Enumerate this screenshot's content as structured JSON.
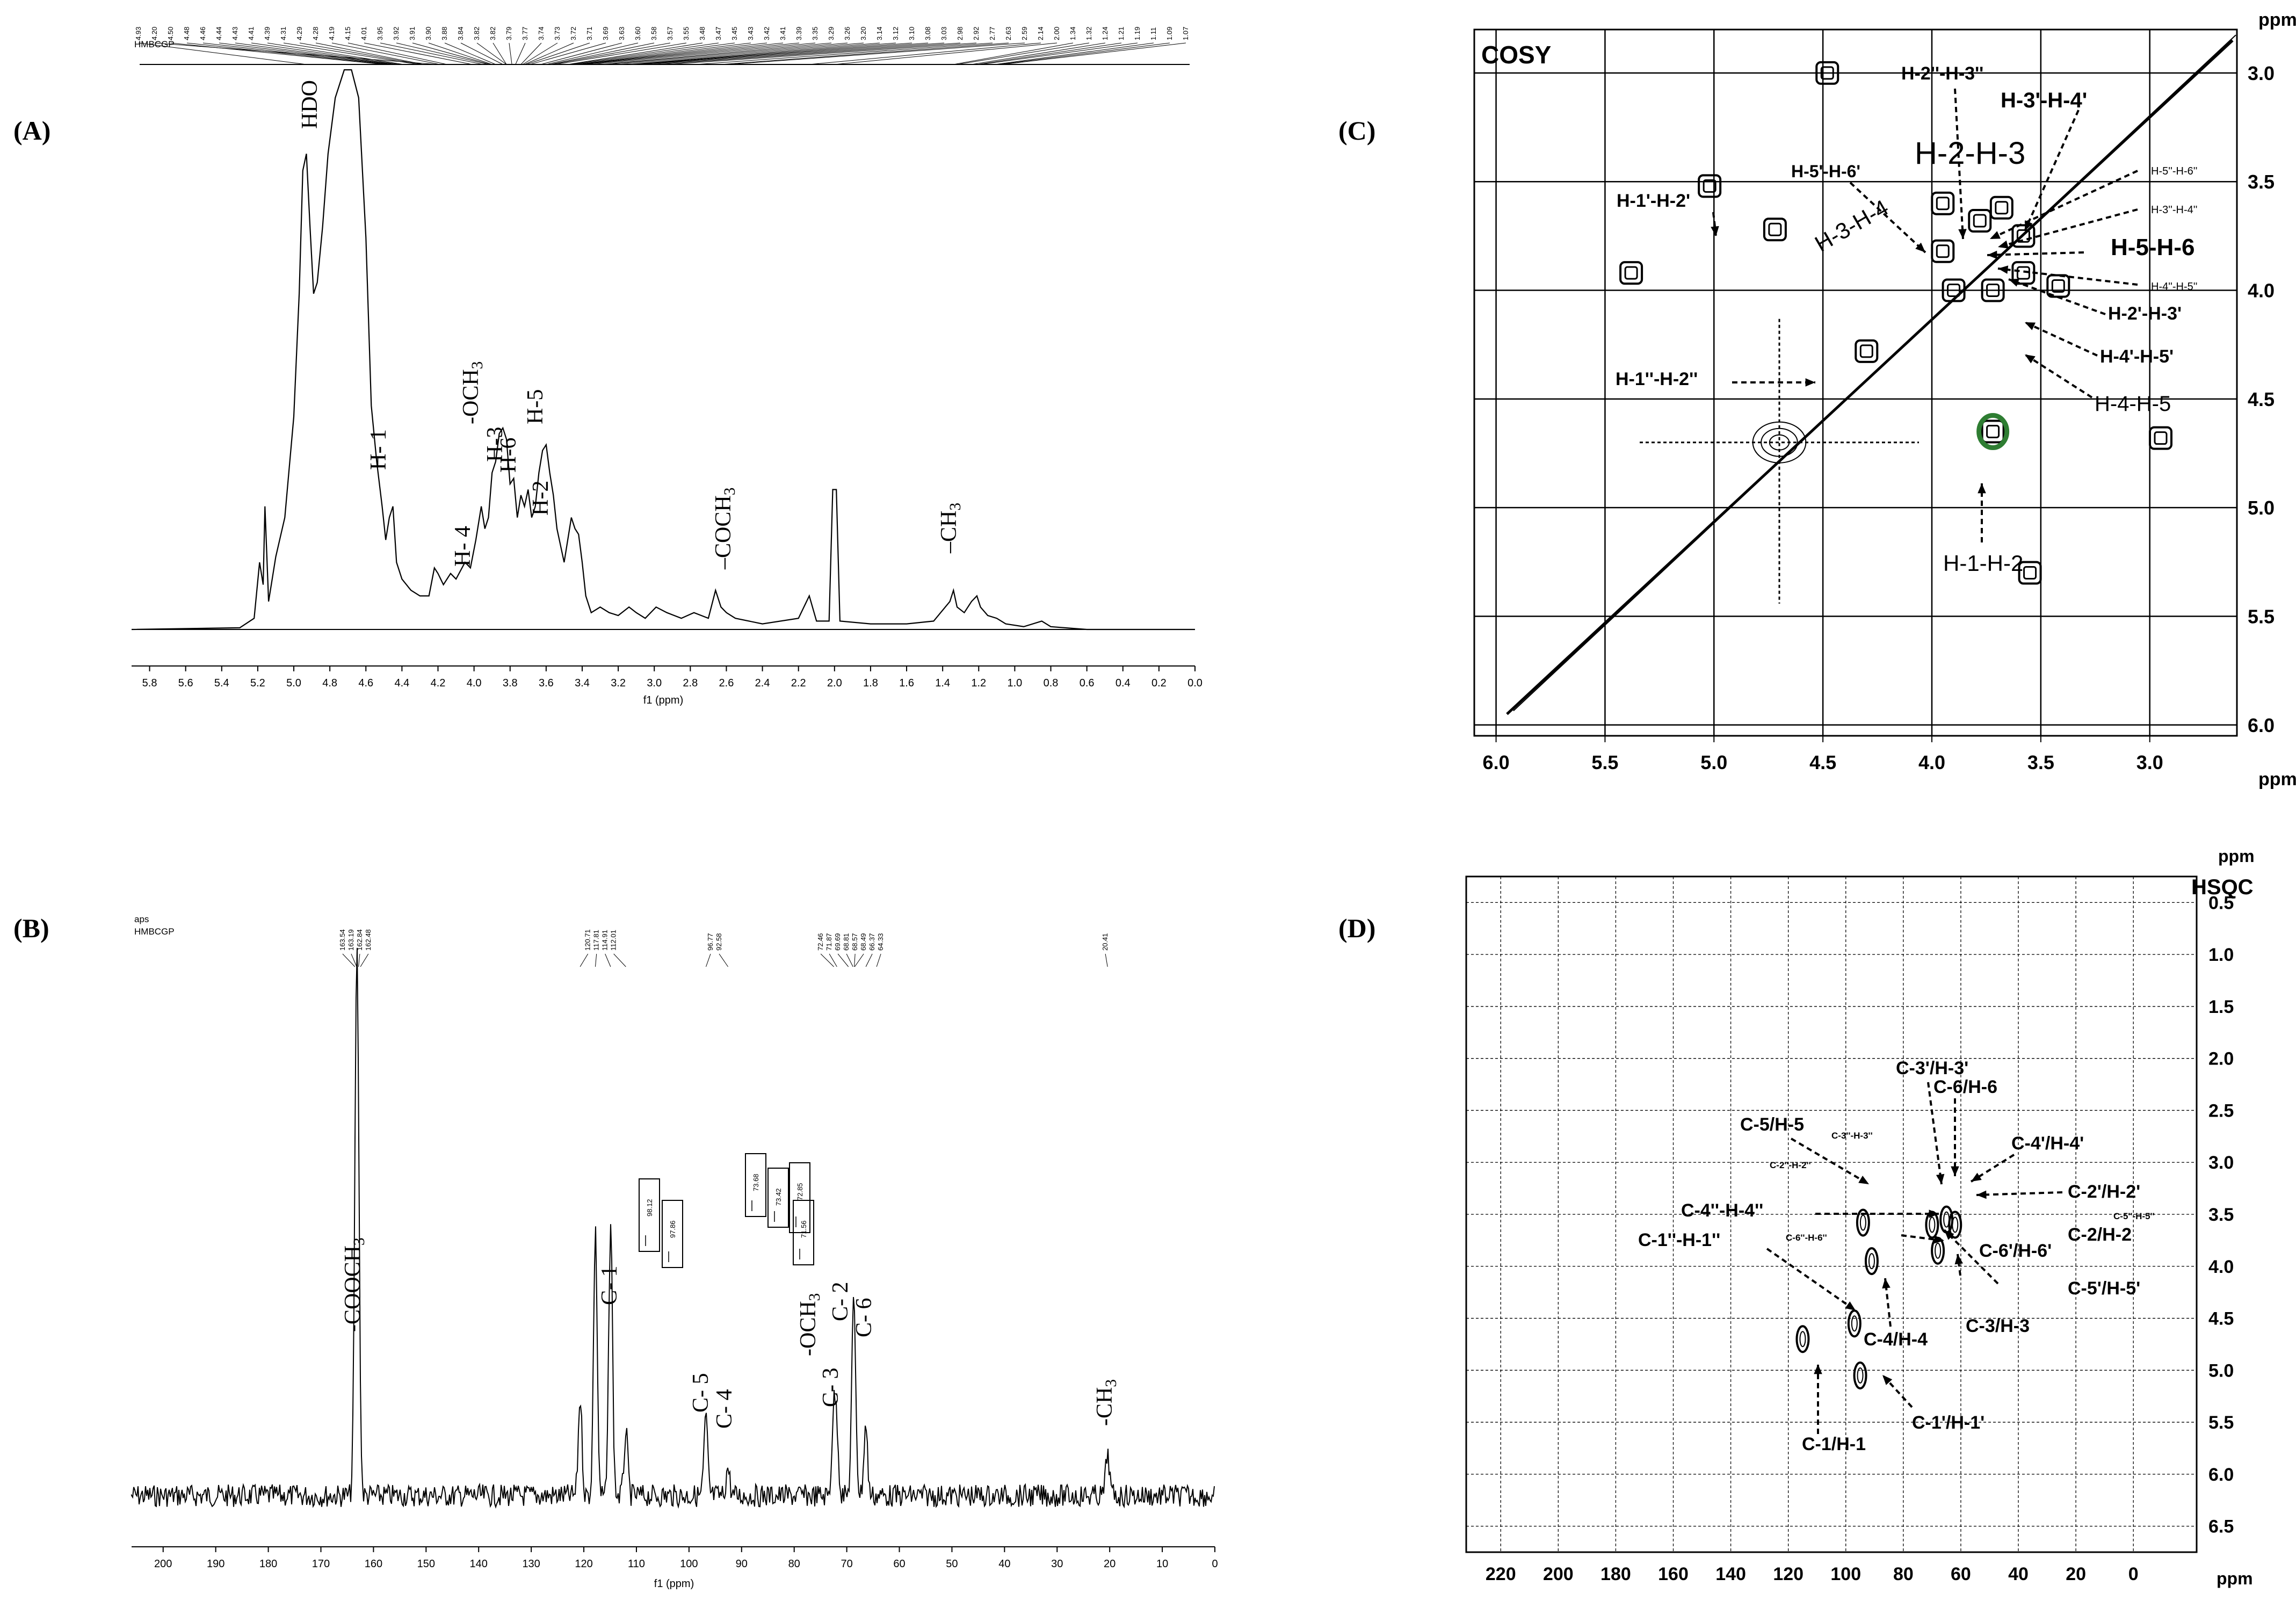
{
  "panels": [
    {
      "id": "A",
      "letter": "(A)",
      "chart_data": {
        "type": "line",
        "title": "",
        "experiment_label": "HMBCGP",
        "xlabel": "f1 (ppm)",
        "xlim": [
          5.9,
          0.0
        ],
        "xticks": [
          "5.8",
          "5.6",
          "5.4",
          "5.2",
          "5.0",
          "4.8",
          "4.6",
          "4.4",
          "4.2",
          "4.0",
          "3.8",
          "3.6",
          "3.4",
          "3.2",
          "3.0",
          "2.8",
          "2.6",
          "2.4",
          "2.2",
          "2.0",
          "1.8",
          "1.6",
          "1.4",
          "1.2",
          "1.0",
          "0.8",
          "0.6",
          "0.4",
          "0.2",
          "0.0"
        ],
        "peak_list": [
          "4.93",
          "4.20",
          "4.50",
          "4.48",
          "4.46",
          "4.44",
          "4.43",
          "4.41",
          "4.39",
          "4.31",
          "4.29",
          "4.28",
          "4.19",
          "4.15",
          "4.01",
          "3.95",
          "3.92",
          "3.91",
          "3.90",
          "3.88",
          "3.84",
          "3.82",
          "3.82",
          "3.79",
          "3.77",
          "3.74",
          "3.73",
          "3.72",
          "3.71",
          "3.69",
          "3.63",
          "3.60",
          "3.58",
          "3.57",
          "3.55",
          "3.48",
          "3.47",
          "3.45",
          "3.43",
          "3.42",
          "3.41",
          "3.39",
          "3.35",
          "3.29",
          "3.26",
          "3.20",
          "3.14",
          "3.12",
          "3.10",
          "3.08",
          "3.03",
          "2.98",
          "2.92",
          "2.77",
          "2.63",
          "2.59",
          "2.14",
          "2.00",
          "1.34",
          "1.32",
          "1.24",
          "1.21",
          "1.19",
          "1.11",
          "1.09",
          "1.07"
        ],
        "series": [
          {
            "points": [
              [
                5.9,
                0.0
              ],
              [
                5.3,
                0.003
              ],
              [
                5.22,
                0.02
              ],
              [
                5.19,
                0.12
              ],
              [
                5.17,
                0.08
              ],
              [
                5.16,
                0.22
              ],
              [
                5.14,
                0.05
              ],
              [
                5.1,
                0.13
              ],
              [
                5.05,
                0.2
              ],
              [
                5.0,
                0.38
              ],
              [
                4.97,
                0.6
              ],
              [
                4.95,
                0.82
              ],
              [
                4.93,
                0.85
              ],
              [
                4.91,
                0.72
              ],
              [
                4.89,
                0.6
              ],
              [
                4.87,
                0.62
              ],
              [
                4.84,
                0.72
              ],
              [
                4.81,
                0.85
              ],
              [
                4.77,
                0.95
              ],
              [
                4.72,
                1.0
              ],
              [
                4.68,
                1.0
              ],
              [
                4.64,
                0.95
              ],
              [
                4.6,
                0.7
              ],
              [
                4.57,
                0.4
              ],
              [
                4.54,
                0.3
              ],
              [
                4.51,
                0.22
              ],
              [
                4.49,
                0.16
              ],
              [
                4.47,
                0.2
              ],
              [
                4.45,
                0.22
              ],
              [
                4.43,
                0.12
              ],
              [
                4.4,
                0.09
              ],
              [
                4.35,
                0.07
              ],
              [
                4.3,
                0.06
              ],
              [
                4.25,
                0.06
              ],
              [
                4.22,
                0.11
              ],
              [
                4.2,
                0.1
              ],
              [
                4.17,
                0.08
              ],
              [
                4.13,
                0.1
              ],
              [
                4.1,
                0.09
              ],
              [
                4.05,
                0.12
              ],
              [
                4.02,
                0.11
              ],
              [
                3.99,
                0.16
              ],
              [
                3.96,
                0.22
              ],
              [
                3.94,
                0.18
              ],
              [
                3.92,
                0.2
              ],
              [
                3.9,
                0.28
              ],
              [
                3.88,
                0.3
              ],
              [
                3.86,
                0.35
              ],
              [
                3.84,
                0.36
              ],
              [
                3.82,
                0.34
              ],
              [
                3.8,
                0.26
              ],
              [
                3.78,
                0.27
              ],
              [
                3.76,
                0.2
              ],
              [
                3.74,
                0.24
              ],
              [
                3.72,
                0.22
              ],
              [
                3.7,
                0.25
              ],
              [
                3.68,
                0.2
              ],
              [
                3.66,
                0.22
              ],
              [
                3.64,
                0.28
              ],
              [
                3.62,
                0.32
              ],
              [
                3.6,
                0.33
              ],
              [
                3.58,
                0.28
              ],
              [
                3.56,
                0.24
              ],
              [
                3.54,
                0.18
              ],
              [
                3.52,
                0.15
              ],
              [
                3.5,
                0.12
              ],
              [
                3.48,
                0.16
              ],
              [
                3.46,
                0.2
              ],
              [
                3.44,
                0.18
              ],
              [
                3.42,
                0.17
              ],
              [
                3.4,
                0.12
              ],
              [
                3.38,
                0.06
              ],
              [
                3.35,
                0.03
              ],
              [
                3.3,
                0.04
              ],
              [
                3.25,
                0.03
              ],
              [
                3.2,
                0.025
              ],
              [
                3.14,
                0.04
              ],
              [
                3.1,
                0.03
              ],
              [
                3.05,
                0.02
              ],
              [
                2.99,
                0.04
              ],
              [
                2.93,
                0.03
              ],
              [
                2.85,
                0.02
              ],
              [
                2.78,
                0.03
              ],
              [
                2.7,
                0.02
              ],
              [
                2.66,
                0.07
              ],
              [
                2.63,
                0.04
              ],
              [
                2.6,
                0.03
              ],
              [
                2.55,
                0.02
              ],
              [
                2.4,
                0.01
              ],
              [
                2.2,
                0.02
              ],
              [
                2.14,
                0.06
              ],
              [
                2.1,
                0.015
              ],
              [
                2.03,
                0.015
              ],
              [
                2.01,
                0.25
              ],
              [
                1.99,
                0.25
              ],
              [
                1.97,
                0.015
              ],
              [
                1.8,
                0.01
              ],
              [
                1.6,
                0.01
              ],
              [
                1.45,
                0.015
              ],
              [
                1.36,
                0.05
              ],
              [
                1.34,
                0.07
              ],
              [
                1.32,
                0.04
              ],
              [
                1.28,
                0.03
              ],
              [
                1.24,
                0.05
              ],
              [
                1.21,
                0.06
              ],
              [
                1.19,
                0.04
              ],
              [
                1.15,
                0.025
              ],
              [
                1.1,
                0.02
              ],
              [
                1.05,
                0.01
              ],
              [
                0.95,
                0.005
              ],
              [
                0.85,
                0.015
              ],
              [
                0.8,
                0.005
              ],
              [
                0.6,
                0.0
              ],
              [
                0.0,
                0.0
              ]
            ]
          }
        ],
        "annotations": [
          "HDO",
          "H- 1",
          "H- 4",
          "-OCH3",
          "H-3",
          "H-6",
          "H-5",
          "H-2",
          "–COCH3",
          "–CH3"
        ]
      }
    },
    {
      "id": "B",
      "letter": "(B)",
      "chart_data": {
        "type": "line",
        "title": "",
        "experiment_labels": [
          "aps",
          "HMBCGP"
        ],
        "xlabel": "f1 (ppm)",
        "xlim": [
          206,
          0
        ],
        "xticks": [
          "200",
          "190",
          "180",
          "170",
          "160",
          "150",
          "140",
          "130",
          "120",
          "110",
          "100",
          "90",
          "80",
          "70",
          "60",
          "50",
          "40",
          "30",
          "20",
          "10",
          "0"
        ],
        "peak_list_groups": [
          [
            "163.54",
            "163.19",
            "162.84",
            "162.48"
          ],
          [
            "120.71",
            "117.81",
            "114.91",
            "112.01"
          ],
          [
            "96.77",
            "92.58"
          ],
          [
            "72.46",
            "71.87",
            "69.69",
            "68.81",
            "68.57",
            "68.49",
            "66.37",
            "64.33"
          ],
          [
            "20.41"
          ]
        ],
        "inset_labels": [
          "98.12",
          "97.86",
          "73.68",
          "73.42",
          "72.85",
          "71.56"
        ],
        "peaks": [
          {
            "ppm": 163.3,
            "height": 0.85
          },
          {
            "ppm": 163.0,
            "height": 0.85
          },
          {
            "ppm": 120.7,
            "height": 0.28
          },
          {
            "ppm": 117.8,
            "height": 0.75
          },
          {
            "ppm": 114.9,
            "height": 0.78
          },
          {
            "ppm": 112.0,
            "height": 0.18
          },
          {
            "ppm": 96.8,
            "height": 0.22
          },
          {
            "ppm": 92.6,
            "height": 0.08
          },
          {
            "ppm": 72.5,
            "height": 0.22
          },
          {
            "ppm": 71.9,
            "height": 0.18
          },
          {
            "ppm": 68.8,
            "height": 0.34
          },
          {
            "ppm": 68.5,
            "height": 0.26
          },
          {
            "ppm": 66.4,
            "height": 0.2
          },
          {
            "ppm": 20.4,
            "height": 0.12
          }
        ],
        "annotations": [
          "-COOCH3",
          "C- 1",
          "C- 5",
          "C- 4",
          "C- 3",
          "-OCH3",
          "C- 2",
          "C- 6",
          "-CH3"
        ]
      }
    },
    {
      "id": "C",
      "letter": "(C)",
      "chart_data": {
        "type": "scatter",
        "title": "COSY",
        "xlabel": "ppm",
        "ylabel": "ppm",
        "xlim": [
          6.1,
          2.6
        ],
        "ylim": [
          2.8,
          6.05
        ],
        "xticks": [
          "6.0",
          "5.5",
          "5.0",
          "4.5",
          "4.0",
          "3.5",
          "3.0"
        ],
        "yticks": [
          "3.0",
          "3.5",
          "4.0",
          "4.5",
          "5.0",
          "5.5",
          "6.0"
        ],
        "crosspeaks": [
          {
            "x": 3.95,
            "y": 3.6
          },
          {
            "x": 3.95,
            "y": 3.82
          },
          {
            "x": 3.78,
            "y": 3.68
          },
          {
            "x": 3.68,
            "y": 3.62
          },
          {
            "x": 3.58,
            "y": 3.75
          },
          {
            "x": 3.58,
            "y": 3.92
          },
          {
            "x": 3.72,
            "y": 4.0
          },
          {
            "x": 3.9,
            "y": 4.0
          },
          {
            "x": 4.72,
            "y": 3.72
          },
          {
            "x": 3.72,
            "y": 4.65
          },
          {
            "x": 5.02,
            "y": 3.52
          },
          {
            "x": 4.3,
            "y": 4.28
          },
          {
            "x": 4.48,
            "y": 3.0
          },
          {
            "x": 3.42,
            "y": 3.98
          },
          {
            "x": 3.55,
            "y": 5.3
          },
          {
            "x": 2.95,
            "y": 4.68
          },
          {
            "x": 5.38,
            "y": 3.92
          }
        ],
        "annotations": [
          "H-1'-H-2'",
          "H-5'-H-6'",
          "H-2''-H-3''",
          "H-3'-H-4'",
          "H-2-H-3",
          "H-3-H-4",
          "H-5''-H-6''",
          "H-3''-H-4''",
          "H-5-H-6",
          "H-4''-H-5''",
          "H-2'-H-3'",
          "H-4'-H-5'",
          "H-4-H-5",
          "H-1''-H-2''",
          "H-1-H-2"
        ],
        "highlight_color": "#2e7d32"
      }
    },
    {
      "id": "D",
      "letter": "(D)",
      "chart_data": {
        "type": "scatter",
        "title": "HSQC",
        "xlabel": "ppm",
        "ylabel": "ppm",
        "xlim": [
          232,
          -22
        ],
        "ylim": [
          0.25,
          6.75
        ],
        "xticks": [
          "220",
          "200",
          "180",
          "160",
          "140",
          "120",
          "100",
          "80",
          "60",
          "40",
          "20",
          "0"
        ],
        "yticks": [
          "0.5",
          "1.0",
          "1.5",
          "2.0",
          "2.5",
          "3.0",
          "3.5",
          "4.0",
          "4.5",
          "5.0",
          "5.5",
          "6.0",
          "6.5"
        ],
        "crosspeaks": [
          {
            "x": 115,
            "y": 4.7
          },
          {
            "x": 94,
            "y": 3.58
          },
          {
            "x": 91,
            "y": 3.95
          },
          {
            "x": 97,
            "y": 4.55
          },
          {
            "x": 95,
            "y": 5.05
          },
          {
            "x": 70,
            "y": 3.6
          },
          {
            "x": 65,
            "y": 3.55
          },
          {
            "x": 62,
            "y": 3.6
          },
          {
            "x": 68,
            "y": 3.85
          }
        ],
        "annotations": [
          "C-3'/H-3'",
          "C-6/H-6",
          "C-5/H-5",
          "C-3''-H-3''",
          "C-4'/H-4'",
          "C-2''-H-2''",
          "C-2'/H-2'",
          "C-4''-H-4''",
          "C-5''-H-5''",
          "C-1''-H-1''",
          "C-6''-H-6''",
          "C-2/H-2",
          "C-6'/H-6'",
          "C-5'/H-5'",
          "C-4/H-4",
          "C-3/H-3",
          "C-1'/H-1'",
          "C-1/H-1"
        ]
      }
    }
  ]
}
